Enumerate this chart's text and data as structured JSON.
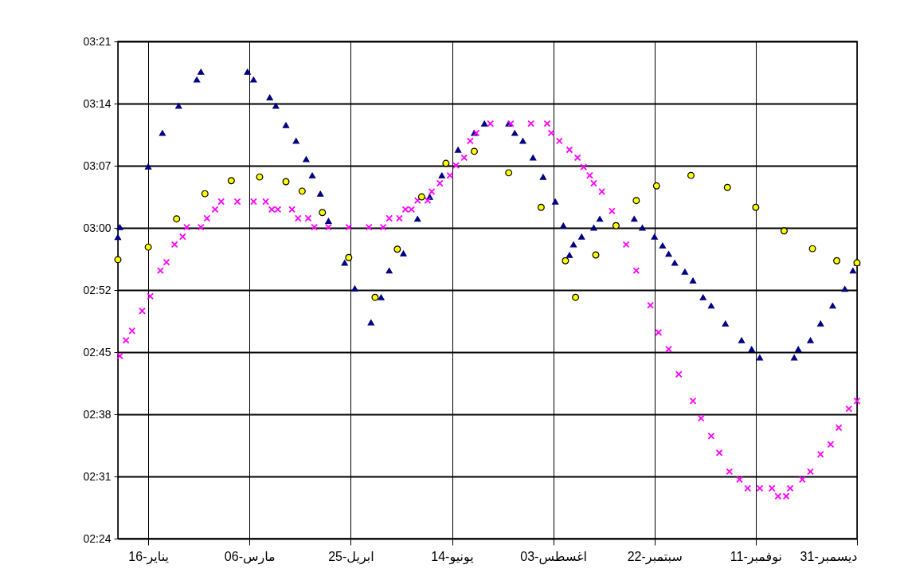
{
  "chart_data": {
    "type": "scatter",
    "grid": true,
    "xlim": [
      "--01-01",
      "--12-31"
    ],
    "xticks": [
      {
        "value": "--01-16",
        "label": "16-يناير"
      },
      {
        "value": "--03-06",
        "label": "06-مارس"
      },
      {
        "value": "--04-25",
        "label": "25-ابريل"
      },
      {
        "value": "--06-14",
        "label": "14-يونيو"
      },
      {
        "value": "--08-03",
        "label": "03-اغسطس"
      },
      {
        "value": "--09-22",
        "label": "22-سبتمبر"
      },
      {
        "value": "--11-11",
        "label": "11-نوفمبر"
      },
      {
        "value": "--12-31",
        "label": "31-ديسمبر"
      }
    ],
    "ylim": [
      2.4,
      3.35
    ],
    "yticks": [
      {
        "value": 2.4,
        "label": "02:24"
      },
      {
        "value": 2.51875,
        "label": "02:31"
      },
      {
        "value": 2.6375,
        "label": "02:38"
      },
      {
        "value": 2.75625,
        "label": "02:45"
      },
      {
        "value": 2.875,
        "label": "02:52"
      },
      {
        "value": 2.99375,
        "label": "03:00"
      },
      {
        "value": 3.1125,
        "label": "03:07"
      },
      {
        "value": 3.23125,
        "label": "03:14"
      },
      {
        "value": 3.35,
        "label": "03:21"
      }
    ],
    "series": [
      {
        "color": "#000080",
        "marker": "triangle",
        "x": [
          "--01-01",
          "--01-02",
          "--01-16",
          "--01-23",
          "--01-31",
          "--02-09",
          "--02-11",
          "--03-05",
          "--03-08",
          "--03-16",
          "--03-19",
          "--03-24",
          "--03-29",
          "--04-03",
          "--04-06",
          "--04-10",
          "--04-14",
          "--04-22",
          "--04-27",
          "--05-05",
          "--05-10",
          "--05-14",
          "--05-21",
          "--05-28",
          "--06-03",
          "--06-09",
          "--06-17",
          "--06-25",
          "--06-30",
          "--07-12",
          "--07-15",
          "--07-19",
          "--07-24",
          "--07-29",
          "--08-04",
          "--08-08",
          "--08-11",
          "--08-13",
          "--08-17",
          "--08-23",
          "--08-26",
          "--09-12",
          "--09-16",
          "--09-22",
          "--09-26",
          "--09-29",
          "--10-02",
          "--10-07",
          "--10-11",
          "--10-16",
          "--10-20",
          "--10-27",
          "--11-04",
          "--11-09",
          "--11-13",
          "--11-30",
          "--12-02",
          "--12-08",
          "--12-13",
          "--12-19",
          "--12-25",
          "--12-29",
          "--12-31"
        ],
        "values": [
          2.976,
          2.995,
          3.111,
          3.175,
          3.227,
          3.277,
          3.292,
          3.292,
          3.277,
          3.243,
          3.227,
          3.19,
          3.16,
          3.125,
          3.094,
          3.059,
          3.007,
          2.927,
          2.878,
          2.813,
          2.861,
          2.912,
          2.945,
          3.011,
          3.053,
          3.094,
          3.143,
          3.175,
          3.193,
          3.193,
          3.175,
          3.16,
          3.128,
          3.091,
          3.044,
          2.998,
          2.942,
          2.962,
          2.977,
          2.994,
          3.011,
          3.011,
          2.994,
          2.977,
          2.96,
          2.944,
          2.927,
          2.91,
          2.893,
          2.861,
          2.845,
          2.811,
          2.779,
          2.762,
          2.746,
          2.746,
          2.762,
          2.779,
          2.811,
          2.845,
          2.877,
          2.912,
          2.927
        ]
      },
      {
        "color": "#ff00ff",
        "marker": "cross",
        "x": [
          "--01-02",
          "--01-05",
          "--01-08",
          "--01-13",
          "--01-17",
          "--01-22",
          "--01-25",
          "--01-29",
          "--02-02",
          "--02-04",
          "--02-11",
          "--02-14",
          "--02-18",
          "--02-21",
          "--02-29",
          "--03-08",
          "--03-14",
          "--03-17",
          "--03-20",
          "--03-27",
          "--03-30",
          "--04-04",
          "--04-07",
          "--04-14",
          "--04-24",
          "--05-04",
          "--05-11",
          "--05-14",
          "--05-19",
          "--05-22",
          "--05-25",
          "--05-28",
          "--06-02",
          "--06-04",
          "--06-08",
          "--06-13",
          "--06-16",
          "--06-20",
          "--06-23",
          "--06-26",
          "--07-03",
          "--07-13",
          "--07-23",
          "--07-31",
          "--08-02",
          "--08-06",
          "--08-11",
          "--08-15",
          "--08-18",
          "--08-21",
          "--08-23",
          "--08-27",
          "--09-01",
          "--09-08",
          "--09-13",
          "--09-20",
          "--09-24",
          "--09-29",
          "--10-04",
          "--10-11",
          "--10-15",
          "--10-20",
          "--10-24",
          "--10-29",
          "--11-03",
          "--11-07",
          "--11-13",
          "--11-19",
          "--11-22",
          "--11-26",
          "--11-28",
          "--12-04",
          "--12-08",
          "--12-13",
          "--12-18",
          "--12-22",
          "--12-27",
          "--12-31"
        ],
        "values": [
          2.749,
          2.779,
          2.797,
          2.835,
          2.863,
          2.912,
          2.928,
          2.962,
          2.977,
          2.995,
          2.995,
          3.012,
          3.029,
          3.044,
          3.044,
          3.044,
          3.044,
          3.029,
          3.029,
          3.029,
          3.012,
          3.012,
          2.995,
          2.995,
          2.995,
          2.995,
          2.995,
          3.012,
          3.012,
          3.029,
          3.029,
          3.046,
          3.046,
          3.063,
          3.079,
          3.094,
          3.113,
          3.128,
          3.16,
          3.175,
          3.193,
          3.193,
          3.193,
          3.193,
          3.175,
          3.16,
          3.143,
          3.128,
          3.11,
          3.094,
          3.079,
          3.063,
          3.026,
          2.962,
          2.912,
          2.846,
          2.794,
          2.762,
          2.714,
          2.663,
          2.63,
          2.596,
          2.564,
          2.528,
          2.513,
          2.496,
          2.496,
          2.496,
          2.481,
          2.481,
          2.496,
          2.513,
          2.528,
          2.561,
          2.58,
          2.612,
          2.648,
          2.663
        ]
      },
      {
        "color": "#ffff00",
        "marker": "circle",
        "x": [
          "--01-01",
          "--01-16",
          "--01-30",
          "--02-13",
          "--02-26",
          "--03-11",
          "--03-24",
          "--04-01",
          "--04-11",
          "--04-24",
          "--05-07",
          "--05-18",
          "--05-30",
          "--06-11",
          "--06-25",
          "--07-12",
          "--07-28",
          "--08-09",
          "--08-14",
          "--08-24",
          "--09-03",
          "--09-13",
          "--09-23",
          "--10-10",
          "--10-28",
          "--11-11",
          "--11-25",
          "--12-09",
          "--12-21",
          "--12-31"
        ],
        "values": [
          2.933,
          2.957,
          3.011,
          3.059,
          3.084,
          3.091,
          3.082,
          3.064,
          3.023,
          2.937,
          2.861,
          2.953,
          3.053,
          3.117,
          3.14,
          3.099,
          3.033,
          2.931,
          2.861,
          2.942,
          2.998,
          3.046,
          3.074,
          3.094,
          3.071,
          3.033,
          2.988,
          2.954,
          2.931,
          2.927
        ]
      }
    ]
  }
}
